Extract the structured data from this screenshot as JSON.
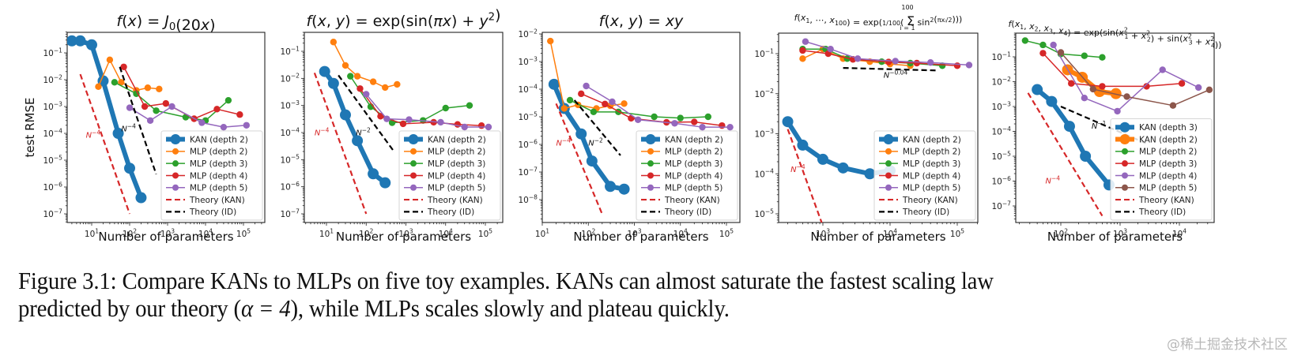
{
  "figure": {
    "caption_line1": "Figure 3.1: Compare KANs to MLPs on five toy examples. KANs can almost saturate the fastest scaling law",
    "caption_line2_pre": "predicted by our theory (",
    "caption_alpha": "α = 4",
    "caption_line2_post": "), while MLPs scales slowly and plateau quickly.",
    "watermark": "@稀土掘金技术社区"
  },
  "colors": {
    "kan_blue": "#1f77b4",
    "kan_orange": "#ff7f0e",
    "mlp_orange": "#ff7f0e",
    "mlp_green": "#2ca02c",
    "mlp_red": "#d62728",
    "mlp_purple": "#9467bd",
    "mlp_brown": "#8c564b",
    "theory_kan": "#d62728",
    "theory_id": "#000000"
  },
  "chart_data": [
    {
      "type": "line",
      "title": "f(x) = J0(20x)",
      "xlabel": "Number of parameters",
      "ylabel": "test RMSE",
      "xscale": "log",
      "yscale": "log",
      "xticks": [
        "10^1",
        "10^2",
        "10^3",
        "10^4",
        "10^5"
      ],
      "yticks": [
        "10^-1",
        "10^-2",
        "10^-3",
        "10^-4",
        "10^-5",
        "10^-6",
        "10^-7"
      ],
      "legend": "lower-right",
      "series": [
        {
          "name": "KAN (depth 2)",
          "style": "kan_blue",
          "x": [
            3,
            5,
            10,
            20,
            50,
            100,
            200
          ],
          "y": [
            0.28,
            0.28,
            0.2,
            0.009,
            0.0001,
            5e-06,
            4e-07
          ]
        },
        {
          "name": "MLP (depth 2)",
          "style": "mlp_orange",
          "x": [
            15,
            30,
            60,
            150,
            300,
            600
          ],
          "y": [
            0.0055,
            0.055,
            0.008,
            0.004,
            0.005,
            0.0045
          ]
        },
        {
          "name": "MLP (depth 3)",
          "style": "mlp_green",
          "x": [
            40,
            150,
            500,
            3000,
            10000,
            40000
          ],
          "y": [
            0.008,
            0.003,
            0.0007,
            0.0004,
            0.0003,
            0.0017
          ]
        },
        {
          "name": "MLP (depth 4)",
          "style": "mlp_red",
          "x": [
            70,
            250,
            900,
            5000,
            20000,
            80000
          ],
          "y": [
            0.03,
            0.001,
            0.0013,
            0.00035,
            0.0008,
            0.0005
          ]
        },
        {
          "name": "MLP (depth 5)",
          "style": "mlp_purple",
          "x": [
            100,
            350,
            1300,
            8000,
            30000,
            120000
          ],
          "y": [
            0.0009,
            0.0003,
            0.001,
            0.00025,
            0.00017,
            0.0002
          ]
        },
        {
          "name": "Theory (KAN)",
          "style": "theory_kan",
          "x": [
            5,
            100
          ],
          "y": [
            0.016,
            1e-07
          ]
        },
        {
          "name": "Theory (ID)",
          "style": "theory_id",
          "x": [
            55,
            500
          ],
          "y": [
            0.03,
            3e-06
          ]
        }
      ],
      "annotations": [
        {
          "text": "N^-4",
          "x": 7,
          "y": 7e-05,
          "color": "theory_kan"
        },
        {
          "text": "N^-4",
          "x": 60,
          "y": 0.00012,
          "color": "theory_id"
        }
      ]
    },
    {
      "type": "line",
      "title": "f(x, y) = exp(sin(πx) + y^2)",
      "xlabel": "Number of parameters",
      "ylabel": "",
      "xscale": "log",
      "yscale": "log",
      "xticks": [
        "10^1",
        "10^2",
        "10^3",
        "10^4",
        "10^5"
      ],
      "yticks": [
        "10^-1",
        "10^-2",
        "10^-3",
        "10^-4",
        "10^-5",
        "10^-6",
        "10^-7"
      ],
      "legend": "lower-right",
      "series": [
        {
          "name": "KAN (depth 2)",
          "style": "kan_blue",
          "x": [
            9,
            15,
            30,
            60,
            150,
            300
          ],
          "y": [
            0.018,
            0.0065,
            0.00045,
            5e-05,
            3e-06,
            1.4e-06
          ]
        },
        {
          "name": "MLP (depth 2)",
          "style": "mlp_orange",
          "x": [
            15,
            30,
            60,
            150,
            300,
            600
          ],
          "y": [
            0.22,
            0.03,
            0.012,
            0.0075,
            0.0046,
            0.006
          ]
        },
        {
          "name": "MLP (depth 3)",
          "style": "mlp_green",
          "x": [
            40,
            130,
            450,
            2700,
            10000,
            40000
          ],
          "y": [
            0.012,
            0.0009,
            0.00023,
            0.00028,
            0.0008,
            0.001
          ]
        },
        {
          "name": "MLP (depth 4)",
          "style": "mlp_red",
          "x": [
            70,
            230,
            850,
            5000,
            20000,
            80000
          ],
          "y": [
            0.0042,
            0.0004,
            0.00021,
            0.00024,
            0.0002,
            0.00018
          ]
        },
        {
          "name": "MLP (depth 5)",
          "style": "mlp_purple",
          "x": [
            100,
            330,
            1200,
            7500,
            30000,
            120000
          ],
          "y": [
            0.0026,
            0.00032,
            0.0003,
            0.00024,
            0.00016,
            0.00016
          ]
        },
        {
          "name": "Theory (KAN)",
          "style": "theory_kan",
          "x": [
            5,
            100
          ],
          "y": [
            0.016,
            1e-07
          ]
        },
        {
          "name": "Theory (ID)",
          "style": "theory_id",
          "x": [
            20,
            500
          ],
          "y": [
            0.013,
            2e-05
          ]
        }
      ],
      "annotations": [
        {
          "text": "N^-4",
          "x": 5,
          "y": 8e-05,
          "color": "theory_kan"
        },
        {
          "text": "N^-2",
          "x": 55,
          "y": 8e-05,
          "color": "theory_id"
        }
      ]
    },
    {
      "type": "line",
      "title": "f(x, y) = xy",
      "xlabel": "Number of parameters",
      "ylabel": "",
      "xscale": "log",
      "yscale": "log",
      "xticks": [
        "10^1",
        "10^2",
        "10^3",
        "10^4",
        "10^5"
      ],
      "yticks": [
        "10^-2",
        "10^-3",
        "10^-4",
        "10^-5",
        "10^-6",
        "10^-7",
        "10^-8"
      ],
      "legend": "lower-right",
      "series": [
        {
          "name": "KAN (depth 2)",
          "style": "kan_blue",
          "x": [
            18,
            30,
            70,
            120,
            300,
            600
          ],
          "y": [
            0.00015,
            2e-05,
            2.4e-06,
            2.5e-07,
            3e-08,
            2.4e-08
          ]
        },
        {
          "name": "MLP (depth 2)",
          "style": "mlp_orange",
          "x": [
            15,
            30,
            60,
            150,
            300,
            600
          ],
          "y": [
            0.0055,
            2e-05,
            2.7e-05,
            2e-05,
            2.5e-05,
            3e-05
          ]
        },
        {
          "name": "MLP (depth 3)",
          "style": "mlp_green",
          "x": [
            40,
            130,
            450,
            2700,
            10000,
            40000
          ],
          "y": [
            4e-05,
            1.5e-05,
            1.5e-05,
            1e-05,
            9e-06,
            1e-05
          ]
        },
        {
          "name": "MLP (depth 4)",
          "style": "mlp_red",
          "x": [
            70,
            230,
            850,
            5000,
            20000,
            80000
          ],
          "y": [
            6.8e-05,
            2.9e-05,
            8.8e-06,
            6.3e-06,
            6.5e-06,
            4.8e-06
          ]
        },
        {
          "name": "MLP (depth 5)",
          "style": "mlp_purple",
          "x": [
            90,
            330,
            1200,
            7500,
            30000,
            120000
          ],
          "y": [
            0.00013,
            3.5e-05,
            7.8e-06,
            5.8e-06,
            4.2e-06,
            4.2e-06
          ]
        },
        {
          "name": "Theory (KAN)",
          "style": "theory_kan",
          "x": [
            20,
            200
          ],
          "y": [
            3e-05,
            3e-09
          ]
        },
        {
          "name": "Theory (ID)",
          "style": "theory_id",
          "x": [
            50,
            500
          ],
          "y": [
            4e-05,
            4e-07
          ]
        }
      ],
      "annotations": [
        {
          "text": "N^-4",
          "x": 20,
          "y": 9e-07,
          "color": "theory_kan"
        },
        {
          "text": "N^-2",
          "x": 100,
          "y": 9e-07,
          "color": "theory_id"
        }
      ]
    },
    {
      "type": "line",
      "title": "f(x1, ..., x100) = exp((1/100) Σ_{i=1}^{100} sin^2(π xi / 2))",
      "xlabel": "Number of parameters",
      "ylabel": "",
      "xscale": "log",
      "yscale": "log",
      "xticks": [
        "10^3",
        "10^4",
        "10^5"
      ],
      "yticks": [
        "10^-1",
        "10^-2",
        "10^-3",
        "10^-4",
        "10^-5"
      ],
      "legend": "lower-right",
      "series": [
        {
          "name": "KAN (depth 2)",
          "style": "kan_blue",
          "x": [
            300,
            500,
            1000,
            2000,
            5000,
            10000
          ],
          "y": [
            0.002,
            0.00052,
            0.00023,
            0.00014,
            0.0001,
            0.00012
          ]
        },
        {
          "name": "MLP (depth 2)",
          "style": "mlp_orange",
          "x": [
            500,
            1000,
            2000,
            5000,
            10000,
            20000
          ],
          "y": [
            0.075,
            0.13,
            0.075,
            0.063,
            0.055,
            0.05
          ]
        },
        {
          "name": "MLP (depth 3)",
          "style": "mlp_green",
          "x": [
            500,
            1100,
            2300,
            7500,
            20000,
            60000
          ],
          "y": [
            0.13,
            0.13,
            0.075,
            0.063,
            0.058,
            0.05
          ]
        },
        {
          "name": "MLP (depth 4)",
          "style": "mlp_red",
          "x": [
            500,
            1200,
            2800,
            9500,
            25000,
            100000
          ],
          "y": [
            0.12,
            0.1,
            0.072,
            0.062,
            0.058,
            0.05
          ]
        },
        {
          "name": "MLP (depth 5)",
          "style": "mlp_purple",
          "x": [
            550,
            1300,
            3300,
            12000,
            40000,
            150000
          ],
          "y": [
            0.2,
            0.13,
            0.075,
            0.065,
            0.06,
            0.052
          ]
        },
        {
          "name": "Theory (KAN)",
          "style": "theory_kan",
          "x": [
            300,
            1000
          ],
          "y": [
            0.0013,
            5e-06
          ]
        },
        {
          "name": "Theory (ID)",
          "style": "theory_id",
          "x": [
            2000,
            50000
          ],
          "y": [
            0.044,
            0.038
          ]
        }
      ],
      "annotations": [
        {
          "text": "N^-4",
          "x": 330,
          "y": 0.00011,
          "color": "theory_kan"
        },
        {
          "text": "N^-0.04",
          "x": 8000,
          "y": 0.025,
          "color": "theory_id"
        }
      ]
    },
    {
      "type": "line",
      "title": "f(x1, x2, x3, x4) = exp(sin(x1^2 + x2^2) + sin(x3^2 + x4^2))",
      "xlabel": "Number of parameters",
      "ylabel": "",
      "xscale": "log",
      "yscale": "log",
      "xticks": [
        "10^2",
        "10^3",
        "10^4"
      ],
      "yticks": [
        "10^-1",
        "10^-2",
        "10^-3",
        "10^-4",
        "10^-5",
        "10^-6",
        "10^-7"
      ],
      "legend": "lower-right",
      "series": [
        {
          "name": "KAN (depth 3)",
          "style": "kan_blue",
          "x": [
            40,
            70,
            140,
            260,
            650
          ],
          "y": [
            0.0048,
            0.0016,
            0.00016,
            1e-05,
            7e-07
          ]
        },
        {
          "name": "KAN (depth 2)",
          "style": "kan_orange",
          "x": [
            130,
            230,
            450,
            850
          ],
          "y": [
            0.03,
            0.015,
            0.004,
            0.0033
          ]
        },
        {
          "name": "MLP (depth 2)",
          "style": "mlp_green",
          "x": [
            25,
            50,
            100,
            250,
            500
          ],
          "y": [
            0.45,
            0.3,
            0.13,
            0.11,
            0.095
          ]
        },
        {
          "name": "MLP (depth 3)",
          "style": "mlp_red",
          "x": [
            50,
            150,
            500,
            2800,
            11000
          ],
          "y": [
            0.14,
            0.0085,
            0.0065,
            0.0065,
            0.0085
          ]
        },
        {
          "name": "MLP (depth 4)",
          "style": "mlp_purple",
          "x": [
            75,
            250,
            900,
            5200,
            21000
          ],
          "y": [
            0.3,
            0.0022,
            0.00065,
            0.03,
            0.0058
          ]
        },
        {
          "name": "MLP (depth 5)",
          "style": "mlp_brown",
          "x": [
            100,
            350,
            1300,
            7800,
            32000
          ],
          "y": [
            0.15,
            0.005,
            0.0025,
            0.0011,
            0.0047
          ]
        },
        {
          "name": "Theory (KAN)",
          "style": "theory_kan",
          "x": [
            28,
            500
          ],
          "y": [
            0.0035,
            4e-08
          ]
        },
        {
          "name": "Theory (ID)",
          "style": "theory_id",
          "x": [
            100,
            3000
          ],
          "y": [
            0.001,
            3e-05
          ]
        }
      ],
      "annotations": [
        {
          "text": "N^-4",
          "x": 55,
          "y": 8e-07,
          "color": "theory_kan"
        },
        {
          "text": "N^-1",
          "x": 330,
          "y": 0.00013,
          "color": "theory_id"
        }
      ]
    }
  ]
}
